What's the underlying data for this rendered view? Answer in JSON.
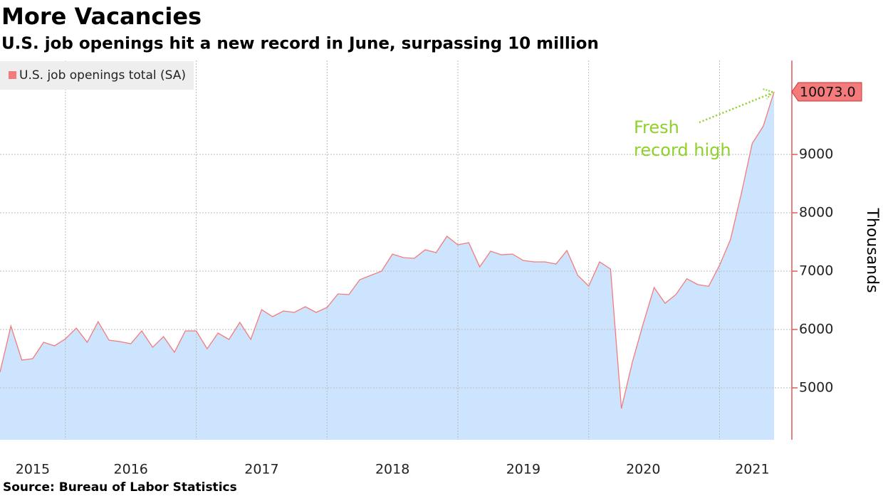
{
  "chart_data": {
    "type": "area",
    "title": "More Vacancies",
    "subtitle": "U.S. job openings hit a new record in June, surpassing 10 million",
    "y_label": "Thousands",
    "source": "Source: Bureau of Labor Statistics",
    "annotation": "Fresh record high",
    "categories": [
      null,
      null,
      null,
      "2015",
      null,
      null,
      null,
      null,
      null,
      null,
      null,
      null,
      "2016",
      null,
      null,
      null,
      null,
      null,
      null,
      null,
      null,
      null,
      null,
      null,
      "2017",
      null,
      null,
      null,
      null,
      null,
      null,
      null,
      null,
      null,
      null,
      null,
      "2018",
      null,
      null,
      null,
      null,
      null,
      null,
      null,
      null,
      null,
      null,
      null,
      "2019",
      null,
      null,
      null,
      null,
      null,
      null,
      null,
      null,
      null,
      null,
      "2020",
      null,
      null,
      null,
      null,
      null,
      null,
      null,
      null,
      null,
      "2021",
      null,
      null
    ],
    "series": [
      {
        "name": "U.S. job openings total (SA)",
        "color": "#f47b7b",
        "fill": "#cce4fd",
        "values": [
          5268,
          6060,
          5476,
          5500,
          5780,
          5720,
          5840,
          6024,
          5780,
          6134,
          5817,
          5793,
          5756,
          5976,
          5695,
          5878,
          5610,
          5976,
          5976,
          5670,
          5939,
          5830,
          6122,
          5830,
          6341,
          6220,
          6317,
          6293,
          6390,
          6293,
          6378,
          6610,
          6598,
          6854,
          6927,
          7000,
          7293,
          7232,
          7220,
          7366,
          7317,
          7598,
          7451,
          7488,
          7073,
          7341,
          7280,
          7293,
          7183,
          7159,
          7159,
          7122,
          7354,
          6927,
          6744,
          7159,
          7037,
          4646,
          5440,
          6100,
          6720,
          6450,
          6600,
          6870,
          6770,
          6740,
          7100,
          7540,
          8330,
          9190,
          9480,
          10073
        ],
        "value_labels": [
          null,
          null,
          null,
          null,
          null,
          null,
          null,
          null,
          null,
          null,
          null,
          null,
          null,
          null,
          null,
          null,
          null,
          null,
          null,
          null,
          null,
          null,
          null,
          null,
          null,
          null,
          null,
          null,
          null,
          null,
          null,
          null,
          null,
          null,
          null,
          null,
          null,
          null,
          null,
          null,
          null,
          null,
          null,
          null,
          null,
          null,
          null,
          null,
          null,
          null,
          null,
          null,
          null,
          null,
          null,
          null,
          null,
          null,
          null,
          null,
          null,
          null,
          null,
          null,
          null,
          null,
          null,
          null,
          null,
          null,
          null,
          "10073.0"
        ]
      }
    ],
    "ylim": [
      4110,
      10610
    ],
    "yticks": [
      5000,
      6000,
      7000,
      8000,
      9000
    ],
    "grid": true
  }
}
